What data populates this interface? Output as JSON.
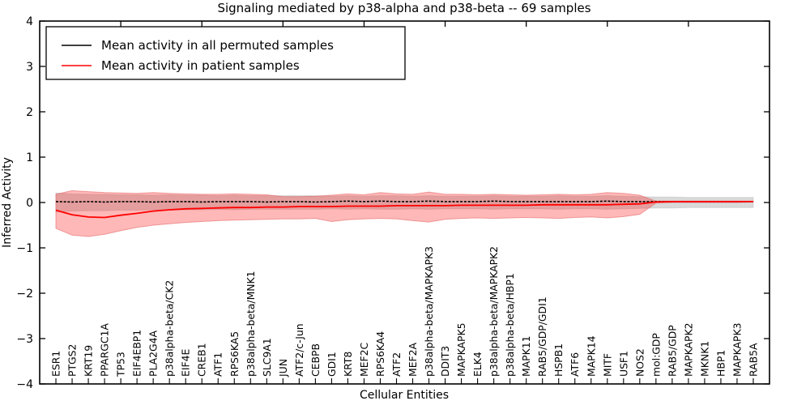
{
  "figure": {
    "title": "Signaling mediated by p38-alpha and p38-beta -- 69 samples"
  },
  "chart_data": {
    "type": "line",
    "title": "Signaling mediated by p38-alpha and p38-beta -- 69 samples",
    "xlabel": "Cellular Entities",
    "ylabel": "Inferred Activity",
    "ylim": [
      -4,
      4
    ],
    "yticks": [
      4,
      3,
      2,
      1,
      0,
      -1,
      -2,
      -3,
      -4
    ],
    "ytick_labels": [
      "4",
      "3",
      "2",
      "1",
      "0",
      "−1",
      "−2",
      "−3",
      "−4"
    ],
    "grid": false,
    "legend_position": "upper left",
    "background": "#ffffff",
    "categories": [
      "ESR1",
      "PTGS2",
      "KRT19",
      "PPARGC1A",
      "TP53",
      "EIF4EBP1",
      "PLA2G4A",
      "p38alpha-beta/CK2",
      "EIF4E",
      "CREB1",
      "ATF1",
      "RPS6KA5",
      "p38alpha-beta/MNK1",
      "SLC9A1",
      "JUN",
      "ATF2/c-Jun",
      "CEBPB",
      "GDI1",
      "KRT8",
      "MEF2C",
      "RPS6KA4",
      "ATF2",
      "MEF2A",
      "p38alpha-beta/MAPKAPK3",
      "DDIT3",
      "MAPKAPK5",
      "ELK4",
      "p38alpha-beta/MAPKAPK2",
      "p38alpha-beta/HBP1",
      "MAPK11",
      "RAB5/GDP/GDI1",
      "HSPB1",
      "ATF6",
      "MAPK14",
      "MITF",
      "USF1",
      "NOS2",
      "mol:GDP",
      "RAB5/GDP",
      "MAPKAPK2",
      "MKNK1",
      "HBP1",
      "MAPKAPK3",
      "RAB5A"
    ],
    "series": [
      {
        "name": "Mean activity in all permuted samples",
        "color": "#000000",
        "line_style": "dashed",
        "values": [
          0.02,
          0.01,
          0.02,
          0.01,
          0.02,
          0.02,
          0.01,
          0.02,
          0.02,
          0.01,
          0.02,
          0.02,
          0.02,
          0.01,
          0.02,
          0.02,
          0.01,
          0.02,
          0.03,
          0.02,
          0.03,
          0.02,
          0.02,
          0.03,
          0.02,
          0.02,
          0.02,
          0.03,
          0.02,
          0.02,
          0.02,
          0.02,
          0.02,
          0.02,
          0.03,
          0.02,
          0.02,
          0.02,
          0.02,
          0.02,
          0.02,
          0.02,
          0.02,
          0.02
        ]
      },
      {
        "name": "Mean activity in patient samples",
        "color": "#ff0000",
        "line_style": "solid",
        "values": [
          -0.17,
          -0.27,
          -0.32,
          -0.33,
          -0.28,
          -0.24,
          -0.19,
          -0.16,
          -0.14,
          -0.13,
          -0.12,
          -0.11,
          -0.11,
          -0.1,
          -0.1,
          -0.09,
          -0.09,
          -0.09,
          -0.08,
          -0.08,
          -0.08,
          -0.07,
          -0.07,
          -0.07,
          -0.07,
          -0.06,
          -0.06,
          -0.06,
          -0.06,
          -0.06,
          -0.05,
          -0.05,
          -0.05,
          -0.05,
          -0.05,
          -0.04,
          -0.03,
          0.01,
          0.02,
          0.02,
          0.02,
          0.02,
          0.02,
          0.02
        ]
      }
    ],
    "bands": [
      {
        "name": "permuted-std-band",
        "fill": "#aaaaaa",
        "opacity": 0.45,
        "edge": "#c0c0c0",
        "upper": [
          0.21,
          0.19,
          0.18,
          0.18,
          0.17,
          0.17,
          0.16,
          0.17,
          0.16,
          0.16,
          0.15,
          0.16,
          0.15,
          0.15,
          0.15,
          0.15,
          0.15,
          0.14,
          0.15,
          0.14,
          0.15,
          0.15,
          0.14,
          0.15,
          0.14,
          0.14,
          0.14,
          0.15,
          0.14,
          0.14,
          0.14,
          0.15,
          0.14,
          0.14,
          0.15,
          0.14,
          0.13,
          0.12,
          0.12,
          0.11,
          0.11,
          0.11,
          0.11,
          0.11
        ],
        "lower": [
          -0.21,
          -0.19,
          -0.18,
          -0.18,
          -0.17,
          -0.17,
          -0.16,
          -0.17,
          -0.16,
          -0.16,
          -0.15,
          -0.16,
          -0.15,
          -0.15,
          -0.15,
          -0.15,
          -0.15,
          -0.14,
          -0.15,
          -0.14,
          -0.15,
          -0.15,
          -0.14,
          -0.15,
          -0.14,
          -0.14,
          -0.14,
          -0.15,
          -0.14,
          -0.14,
          -0.14,
          -0.15,
          -0.14,
          -0.14,
          -0.15,
          -0.14,
          -0.13,
          -0.12,
          -0.12,
          -0.11,
          -0.11,
          -0.11,
          -0.11,
          -0.11
        ]
      },
      {
        "name": "patient-std-band",
        "fill": "#ff2222",
        "opacity": 0.32,
        "edge": "#e25d5d",
        "upper": [
          0.18,
          0.26,
          0.24,
          0.22,
          0.21,
          0.2,
          0.22,
          0.2,
          0.19,
          0.18,
          0.18,
          0.19,
          0.18,
          0.17,
          0.13,
          0.13,
          0.14,
          0.16,
          0.19,
          0.17,
          0.22,
          0.19,
          0.18,
          0.23,
          0.18,
          0.18,
          0.17,
          0.18,
          0.17,
          0.16,
          0.17,
          0.18,
          0.17,
          0.18,
          0.22,
          0.2,
          0.16,
          0.03,
          0.03,
          0.03,
          0.03,
          0.03,
          0.03,
          0.03
        ],
        "lower": [
          -0.57,
          -0.72,
          -0.75,
          -0.7,
          -0.62,
          -0.55,
          -0.5,
          -0.47,
          -0.44,
          -0.42,
          -0.4,
          -0.39,
          -0.38,
          -0.37,
          -0.36,
          -0.36,
          -0.35,
          -0.42,
          -0.38,
          -0.36,
          -0.35,
          -0.36,
          -0.4,
          -0.43,
          -0.37,
          -0.35,
          -0.34,
          -0.35,
          -0.34,
          -0.33,
          -0.34,
          -0.35,
          -0.33,
          -0.32,
          -0.34,
          -0.31,
          -0.26,
          -0.01,
          0.0,
          0.0,
          0.0,
          0.0,
          0.0,
          0.01
        ]
      }
    ]
  }
}
